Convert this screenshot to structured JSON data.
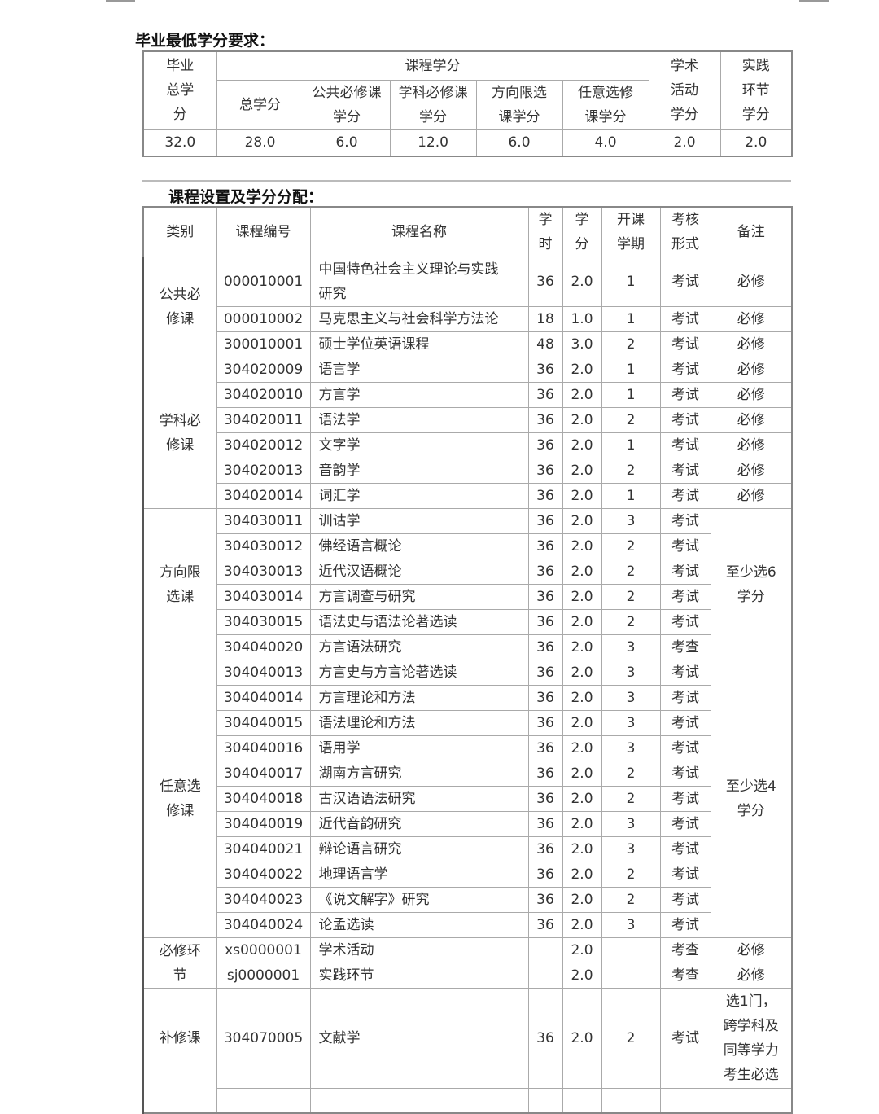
{
  "graduation": {
    "title": "毕业最低学分要求：",
    "headers": {
      "grad_total": "毕业总学分",
      "course_credits": "课程学分",
      "total": "总学分",
      "public_required": "公共必修课学分",
      "subject_required": "学科必修课学分",
      "direction_elective": "方向限选课学分",
      "free_elective": "任意选修课学分",
      "academic": "学术活动学分",
      "practice": "实践环节学分"
    },
    "values": [
      "32.0",
      "28.0",
      "6.0",
      "12.0",
      "6.0",
      "4.0",
      "2.0",
      "2.0"
    ]
  },
  "courses": {
    "title": "课程设置及学分分配：",
    "headers": {
      "category": "类别",
      "code": "课程编号",
      "name": "课程名称",
      "hours": "学时",
      "credits": "学分",
      "semester": "开课学期",
      "assessment": "考核形式",
      "remark": "备注"
    },
    "groups": [
      {
        "category": "公共必修课",
        "courses": [
          {
            "code": "000010001",
            "name": "中国特色社会主义理论与实践研究",
            "hours": "36",
            "credits": "2.0",
            "semester": "1",
            "assessment": "考试",
            "remark": "必修"
          },
          {
            "code": "000010002",
            "name": "马克思主义与社会科学方法论",
            "hours": "18",
            "credits": "1.0",
            "semester": "1",
            "assessment": "考试",
            "remark": "必修"
          },
          {
            "code": "300010001",
            "name": "硕士学位英语课程",
            "hours": "48",
            "credits": "3.0",
            "semester": "2",
            "assessment": "考试",
            "remark": "必修"
          }
        ]
      },
      {
        "category": "学科必修课",
        "courses": [
          {
            "code": "304020009",
            "name": "语言学",
            "hours": "36",
            "credits": "2.0",
            "semester": "1",
            "assessment": "考试",
            "remark": "必修"
          },
          {
            "code": "304020010",
            "name": "方言学",
            "hours": "36",
            "credits": "2.0",
            "semester": "1",
            "assessment": "考试",
            "remark": "必修"
          },
          {
            "code": "304020011",
            "name": "语法学",
            "hours": "36",
            "credits": "2.0",
            "semester": "2",
            "assessment": "考试",
            "remark": "必修"
          },
          {
            "code": "304020012",
            "name": "文字学",
            "hours": "36",
            "credits": "2.0",
            "semester": "1",
            "assessment": "考试",
            "remark": "必修"
          },
          {
            "code": "304020013",
            "name": "音韵学",
            "hours": "36",
            "credits": "2.0",
            "semester": "2",
            "assessment": "考试",
            "remark": "必修"
          },
          {
            "code": "304020014",
            "name": "词汇学",
            "hours": "36",
            "credits": "2.0",
            "semester": "1",
            "assessment": "考试",
            "remark": "必修"
          }
        ]
      },
      {
        "category": "方向限选课",
        "group_remark": "至少选6学分",
        "courses": [
          {
            "code": "304030011",
            "name": "训诂学",
            "hours": "36",
            "credits": "2.0",
            "semester": "3",
            "assessment": "考试"
          },
          {
            "code": "304030012",
            "name": "佛经语言概论",
            "hours": "36",
            "credits": "2.0",
            "semester": "2",
            "assessment": "考试"
          },
          {
            "code": "304030013",
            "name": "近代汉语概论",
            "hours": "36",
            "credits": "2.0",
            "semester": "2",
            "assessment": "考试"
          },
          {
            "code": "304030014",
            "name": "方言调查与研究",
            "hours": "36",
            "credits": "2.0",
            "semester": "2",
            "assessment": "考试"
          },
          {
            "code": "304030015",
            "name": "语法史与语法论著选读",
            "hours": "36",
            "credits": "2.0",
            "semester": "2",
            "assessment": "考试"
          },
          {
            "code": "304040020",
            "name": "方言语法研究",
            "hours": "36",
            "credits": "2.0",
            "semester": "3",
            "assessment": "考查"
          }
        ]
      },
      {
        "category": "任意选修课",
        "group_remark": "至少选4学分",
        "courses": [
          {
            "code": "304040013",
            "name": "方言史与方言论著选读",
            "hours": "36",
            "credits": "2.0",
            "semester": "3",
            "assessment": "考试"
          },
          {
            "code": "304040014",
            "name": "方言理论和方法",
            "hours": "36",
            "credits": "2.0",
            "semester": "3",
            "assessment": "考试"
          },
          {
            "code": "304040015",
            "name": "语法理论和方法",
            "hours": "36",
            "credits": "2.0",
            "semester": "3",
            "assessment": "考试"
          },
          {
            "code": "304040016",
            "name": "语用学",
            "hours": "36",
            "credits": "2.0",
            "semester": "3",
            "assessment": "考试"
          },
          {
            "code": "304040017",
            "name": "湖南方言研究",
            "hours": "36",
            "credits": "2.0",
            "semester": "2",
            "assessment": "考试"
          },
          {
            "code": "304040018",
            "name": "古汉语语法研究",
            "hours": "36",
            "credits": "2.0",
            "semester": "2",
            "assessment": "考试"
          },
          {
            "code": "304040019",
            "name": "近代音韵研究",
            "hours": "36",
            "credits": "2.0",
            "semester": "3",
            "assessment": "考试"
          },
          {
            "code": "304040021",
            "name": "辩论语言研究",
            "hours": "36",
            "credits": "2.0",
            "semester": "3",
            "assessment": "考试"
          },
          {
            "code": "304040022",
            "name": "地理语言学",
            "hours": "36",
            "credits": "2.0",
            "semester": "2",
            "assessment": "考试"
          },
          {
            "code": "304040023",
            "name": "《说文解字》研究",
            "hours": "36",
            "credits": "2.0",
            "semester": "2",
            "assessment": "考试"
          },
          {
            "code": "304040024",
            "name": "论孟选读",
            "hours": "36",
            "credits": "2.0",
            "semester": "3",
            "assessment": "考试"
          }
        ]
      },
      {
        "category": "必修环节",
        "courses": [
          {
            "code": "xs0000001",
            "name": "学术活动",
            "hours": "",
            "credits": "2.0",
            "semester": "",
            "assessment": "考查",
            "remark": "必修"
          },
          {
            "code": "sj0000001",
            "name": "实践环节",
            "hours": "",
            "credits": "2.0",
            "semester": "",
            "assessment": "考查",
            "remark": "必修"
          }
        ]
      },
      {
        "category": "补修课",
        "tall": true,
        "courses": [
          {
            "code": "304070005",
            "name": "文献学",
            "hours": "36",
            "credits": "2.0",
            "semester": "2",
            "assessment": "考试",
            "remark": "选1门，跨学科及同等学力考生必选"
          },
          {
            "code": "",
            "name": "",
            "hours": "",
            "credits": "",
            "semester": "",
            "assessment": "",
            "remark": ""
          }
        ]
      }
    ]
  }
}
